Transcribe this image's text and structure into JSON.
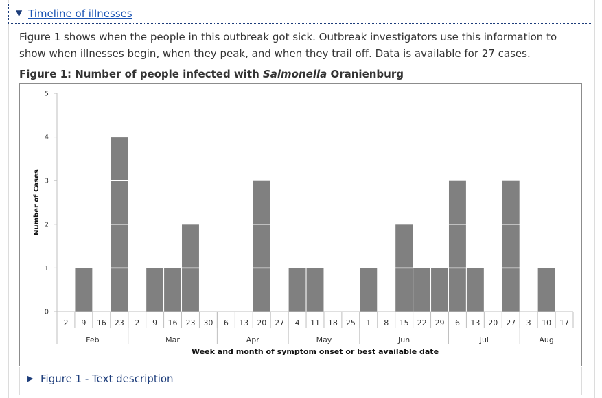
{
  "accordion": {
    "arrow": "▼",
    "title": "Timeline of illnesses"
  },
  "intro_text": "Figure 1 shows when the people in this outbreak got sick. Outbreak investigators use this information to show when illnesses begin, when they peak, and when they trail off. Data is available for 27 cases.",
  "figure": {
    "title_prefix": "Figure 1: Number of people infected with ",
    "title_italic": "Salmonella",
    "title_suffix": " Oranienburg"
  },
  "text_description": {
    "arrow": "▶",
    "label": "Figure 1 - Text description"
  },
  "colors": {
    "bar": "#808080",
    "bar_separator": "#ffffff",
    "axis": "#bfbfbf",
    "link": "#1a54b4"
  },
  "chart_data": {
    "type": "bar",
    "ylabel": "Number of Cases",
    "xlabel": "Week and month of symptom onset or best available date",
    "ylim": [
      0,
      5
    ],
    "yticks": [
      0,
      1,
      2,
      3,
      4,
      5
    ],
    "categories": [
      "2",
      "9",
      "16",
      "23",
      "2",
      "9",
      "16",
      "23",
      "30",
      "6",
      "13",
      "20",
      "27",
      "4",
      "11",
      "18",
      "25",
      "1",
      "8",
      "15",
      "22",
      "29",
      "6",
      "13",
      "20",
      "27",
      "3",
      "10",
      "17"
    ],
    "values": [
      0,
      1,
      0,
      4,
      0,
      1,
      1,
      2,
      0,
      0,
      0,
      3,
      0,
      1,
      1,
      0,
      0,
      1,
      0,
      2,
      1,
      1,
      3,
      1,
      0,
      3,
      0,
      1,
      0
    ],
    "months": [
      {
        "name": "Feb",
        "span": 4
      },
      {
        "name": "Mar",
        "span": 5
      },
      {
        "name": "Apr",
        "span": 4
      },
      {
        "name": "May",
        "span": 4
      },
      {
        "name": "Jun",
        "span": 5
      },
      {
        "name": "Jul",
        "span": 4
      },
      {
        "name": "Aug",
        "span": 3
      }
    ],
    "stacked_unit_cases": true,
    "grid": false
  }
}
